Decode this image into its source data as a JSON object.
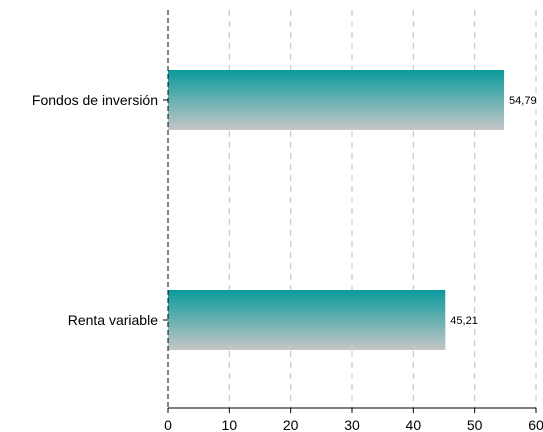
{
  "chart_data": {
    "type": "bar",
    "orientation": "horizontal",
    "categories": [
      "Fondos de inversión",
      "Renta variable"
    ],
    "values": [
      54.79,
      45.21
    ],
    "value_labels": [
      "54,79",
      "45,21"
    ],
    "xlim": [
      0,
      60
    ],
    "xticks": [
      0,
      10,
      20,
      30,
      40,
      50,
      60
    ],
    "grid": "x, dashed",
    "colors": {
      "bar_top": "#0a9a9c",
      "bar_bottom": "#c6c6c6"
    }
  }
}
